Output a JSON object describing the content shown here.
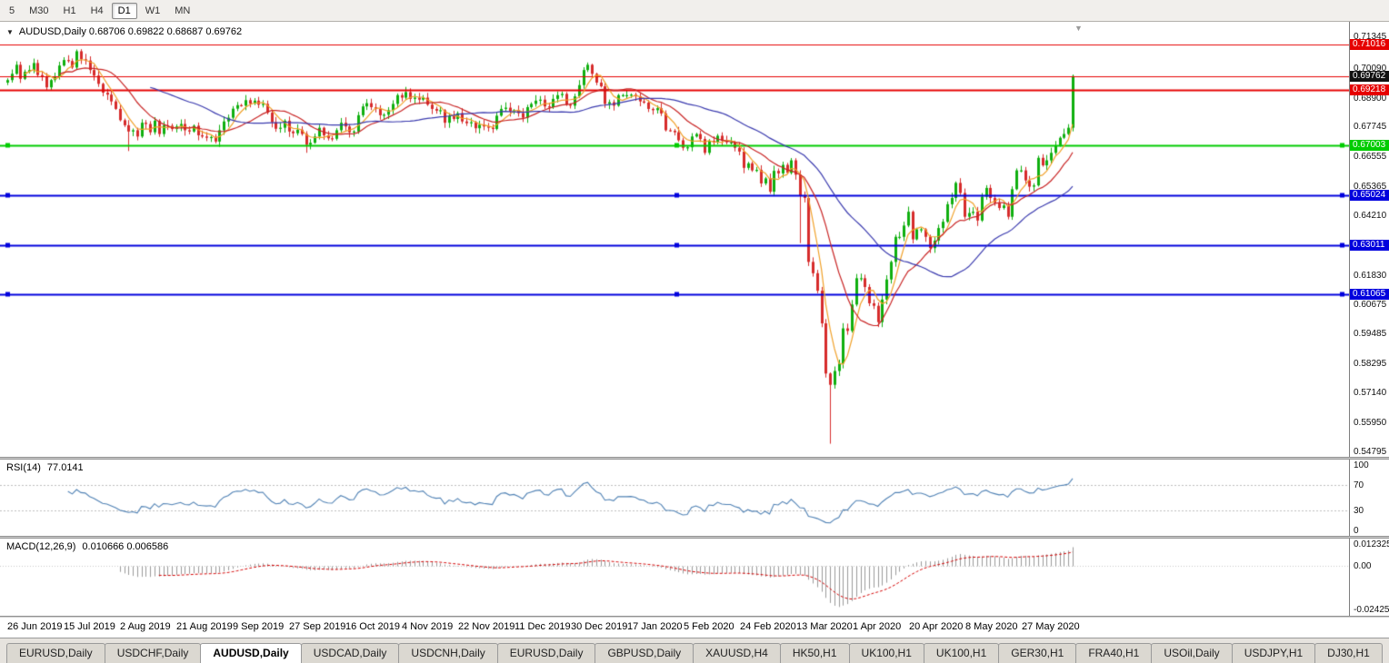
{
  "toolbar": {
    "items": [
      {
        "label": "5",
        "active": false
      },
      {
        "label": "M30",
        "active": false
      },
      {
        "label": "H1",
        "active": false
      },
      {
        "label": "H4",
        "active": false
      },
      {
        "label": "D1",
        "active": true
      },
      {
        "label": "W1",
        "active": false
      },
      {
        "label": "MN",
        "active": false
      }
    ]
  },
  "chart": {
    "dropdown_icon": "▼",
    "ohlc_line": "AUDUSD,Daily 0.68706 0.69822 0.68687 0.69762",
    "end_marker": "▼"
  },
  "current_price": {
    "label": "0.69762",
    "price": 0.69762,
    "badge_color": "#111111",
    "line_color": "#e60000"
  },
  "hlines": [
    {
      "price": 0.71016,
      "label": "0.71016",
      "color": "#e60000",
      "width": 1,
      "selected": false
    },
    {
      "price": 0.69218,
      "label": "0.69218",
      "color": "#e60000",
      "width": 2,
      "selected": false
    },
    {
      "price": 0.67003,
      "label": "0.67003",
      "color": "#00cc00",
      "width": 2,
      "selected": true
    },
    {
      "price": 0.65024,
      "label": "0.65024",
      "color": "#0000dd",
      "width": 2,
      "selected": true
    },
    {
      "price": 0.63011,
      "label": "0.63011",
      "color": "#0000dd",
      "width": 2,
      "selected": true
    },
    {
      "price": 0.61065,
      "label": "0.61065",
      "color": "#0000dd",
      "width": 2,
      "selected": true
    }
  ],
  "rsi": {
    "label": "RSI(14)",
    "value": "77.0141",
    "period": 14,
    "color": "#4f81b4",
    "levels": [
      70,
      30
    ],
    "ticks": [
      "100",
      "70",
      "30",
      "0"
    ],
    "scale": [
      0,
      100
    ]
  },
  "macd": {
    "label": "MACD(12,26,9)",
    "values": "0.010666 0.006586",
    "fast": 12,
    "slow": 26,
    "signal": 9,
    "scale_max": 0.012325,
    "scale_min": -0.02425,
    "ticks": {
      "top": "0.012325",
      "zero": "0.00",
      "bottom": "-0.02425"
    },
    "histogram_color": "#9a9a9a",
    "signal_color": "#d40000"
  },
  "tabs": {
    "items": [
      {
        "label": "EURUSD,Daily",
        "active": false
      },
      {
        "label": "USDCHF,Daily",
        "active": false
      },
      {
        "label": "AUDUSD,Daily",
        "active": true
      },
      {
        "label": "USDCAD,Daily",
        "active": false
      },
      {
        "label": "USDCNH,Daily",
        "active": false
      },
      {
        "label": "EURUSD,Daily",
        "active": false
      },
      {
        "label": "GBPUSD,Daily",
        "active": false
      },
      {
        "label": "XAUUSD,H4",
        "active": false
      },
      {
        "label": "HK50,H1",
        "active": false
      },
      {
        "label": "UK100,H1",
        "active": false
      },
      {
        "label": "UK100,H1",
        "active": false
      },
      {
        "label": "GER30,H1",
        "active": false
      },
      {
        "label": "FRA40,H1",
        "active": false
      },
      {
        "label": "USOil,Daily",
        "active": false
      },
      {
        "label": "USDJPY,H1",
        "active": false
      },
      {
        "label": "DJ30,H1",
        "active": false
      }
    ]
  },
  "chart_data": {
    "type": "candlestick",
    "symbol": "AUDUSD",
    "timeframe": "Daily",
    "ylim": [
      0.54795,
      0.71345
    ],
    "first_open": 0.695,
    "closes": [
      0.696,
      0.6985,
      0.7021,
      0.6965,
      0.6993,
      0.7,
      0.7028,
      0.698,
      0.6975,
      0.6931,
      0.696,
      0.6975,
      0.7018,
      0.704,
      0.7036,
      0.701,
      0.7075,
      0.7043,
      0.7038,
      0.7,
      0.6978,
      0.6945,
      0.691,
      0.6902,
      0.6875,
      0.6845,
      0.68,
      0.678,
      0.6755,
      0.676,
      0.6735,
      0.679,
      0.6785,
      0.6752,
      0.6798,
      0.6745,
      0.678,
      0.6778,
      0.6765,
      0.6775,
      0.6785,
      0.676,
      0.6755,
      0.6778,
      0.674,
      0.6735,
      0.673,
      0.6733,
      0.6715,
      0.676,
      0.6795,
      0.681,
      0.6846,
      0.686,
      0.6858,
      0.688,
      0.6866,
      0.6878,
      0.6862,
      0.6865,
      0.683,
      0.6792,
      0.6766,
      0.677,
      0.6798,
      0.6755,
      0.6748,
      0.6762,
      0.6745,
      0.6702,
      0.671,
      0.6735,
      0.677,
      0.674,
      0.6728,
      0.6726,
      0.676,
      0.679,
      0.6775,
      0.6752,
      0.6755,
      0.682,
      0.6855,
      0.6868,
      0.6852,
      0.6845,
      0.682,
      0.6822,
      0.684,
      0.6865,
      0.69,
      0.689,
      0.6912,
      0.6885,
      0.689,
      0.6882,
      0.689,
      0.6862,
      0.6845,
      0.6838,
      0.684,
      0.679,
      0.6818,
      0.6805,
      0.6828,
      0.6795,
      0.6788,
      0.6792,
      0.6768,
      0.6782,
      0.6775,
      0.677,
      0.6765,
      0.6818,
      0.6845,
      0.685,
      0.6835,
      0.684,
      0.6828,
      0.681,
      0.6852,
      0.6865,
      0.6878,
      0.6882,
      0.6855,
      0.6852,
      0.6885,
      0.69,
      0.6905,
      0.6862,
      0.6858,
      0.6895,
      0.694,
      0.7,
      0.7021,
      0.6985,
      0.695,
      0.6935,
      0.6865,
      0.6872,
      0.6858,
      0.69,
      0.69,
      0.69,
      0.6902,
      0.6895,
      0.6875,
      0.687,
      0.6845,
      0.684,
      0.6848,
      0.6827,
      0.676,
      0.6758,
      0.6752,
      0.672,
      0.669,
      0.6692,
      0.6735,
      0.6745,
      0.6725,
      0.667,
      0.6718,
      0.6712,
      0.6738,
      0.6718,
      0.6712,
      0.6712,
      0.669,
      0.6675,
      0.661,
      0.6628,
      0.66,
      0.6602,
      0.6548,
      0.6568,
      0.6515,
      0.6598,
      0.6588,
      0.6622,
      0.659,
      0.664,
      0.6583,
      0.65,
      0.649,
      0.6235,
      0.619,
      0.612,
      0.599,
      0.579,
      0.5745,
      0.58,
      0.583,
      0.597,
      0.596,
      0.6065,
      0.617,
      0.617,
      0.6135,
      0.607,
      0.606,
      0.5995,
      0.6085,
      0.6165,
      0.6235,
      0.6335,
      0.6335,
      0.638,
      0.6435,
      0.6325,
      0.6365,
      0.6365,
      0.6335,
      0.629,
      0.632,
      0.637,
      0.6395,
      0.6465,
      0.649,
      0.655,
      0.651,
      0.6415,
      0.643,
      0.6435,
      0.64,
      0.6495,
      0.653,
      0.649,
      0.647,
      0.645,
      0.646,
      0.6415,
      0.6525,
      0.66,
      0.66,
      0.656,
      0.6535,
      0.654,
      0.665,
      0.662,
      0.664,
      0.667,
      0.67,
      0.673,
      0.6745,
      0.677,
      0.6976
    ],
    "wick_overrides": [
      {
        "i": 16,
        "high": 0.7082
      },
      {
        "i": 28,
        "low": 0.6677
      },
      {
        "i": 69,
        "low": 0.667
      },
      {
        "i": 183,
        "low": 0.631
      },
      {
        "i": 190,
        "low": 0.551
      },
      {
        "i": 246,
        "high": 0.69822
      }
    ],
    "colors": {
      "up": "#0faf0f",
      "down": "#d62b2b"
    },
    "moving_averages": [
      {
        "period": 5,
        "color": "#f0a028"
      },
      {
        "period": 13,
        "color": "#c82424"
      },
      {
        "period": 34,
        "color": "#3a3aae"
      }
    ],
    "x_labels": [
      "26 Jun 2019",
      "15 Jul 2019",
      "2 Aug 2019",
      "21 Aug 2019",
      "9 Sep 2019",
      "27 Sep 2019",
      "16 Oct 2019",
      "4 Nov 2019",
      "22 Nov 2019",
      "11 Dec 2019",
      "30 Dec 2019",
      "17 Jan 2020",
      "5 Feb 2020",
      "24 Feb 2020",
      "13 Mar 2020",
      "1 Apr 2020",
      "20 Apr 2020",
      "8 May 2020",
      "27 May 2020"
    ],
    "y_ticks": [
      "0.71345",
      "0.70090",
      "0.68900",
      "0.67745",
      "0.66555",
      "0.65365",
      "0.64210",
      "0.61830",
      "0.60675",
      "0.59485",
      "0.58295",
      "0.57140",
      "0.55950",
      "0.54795"
    ]
  }
}
